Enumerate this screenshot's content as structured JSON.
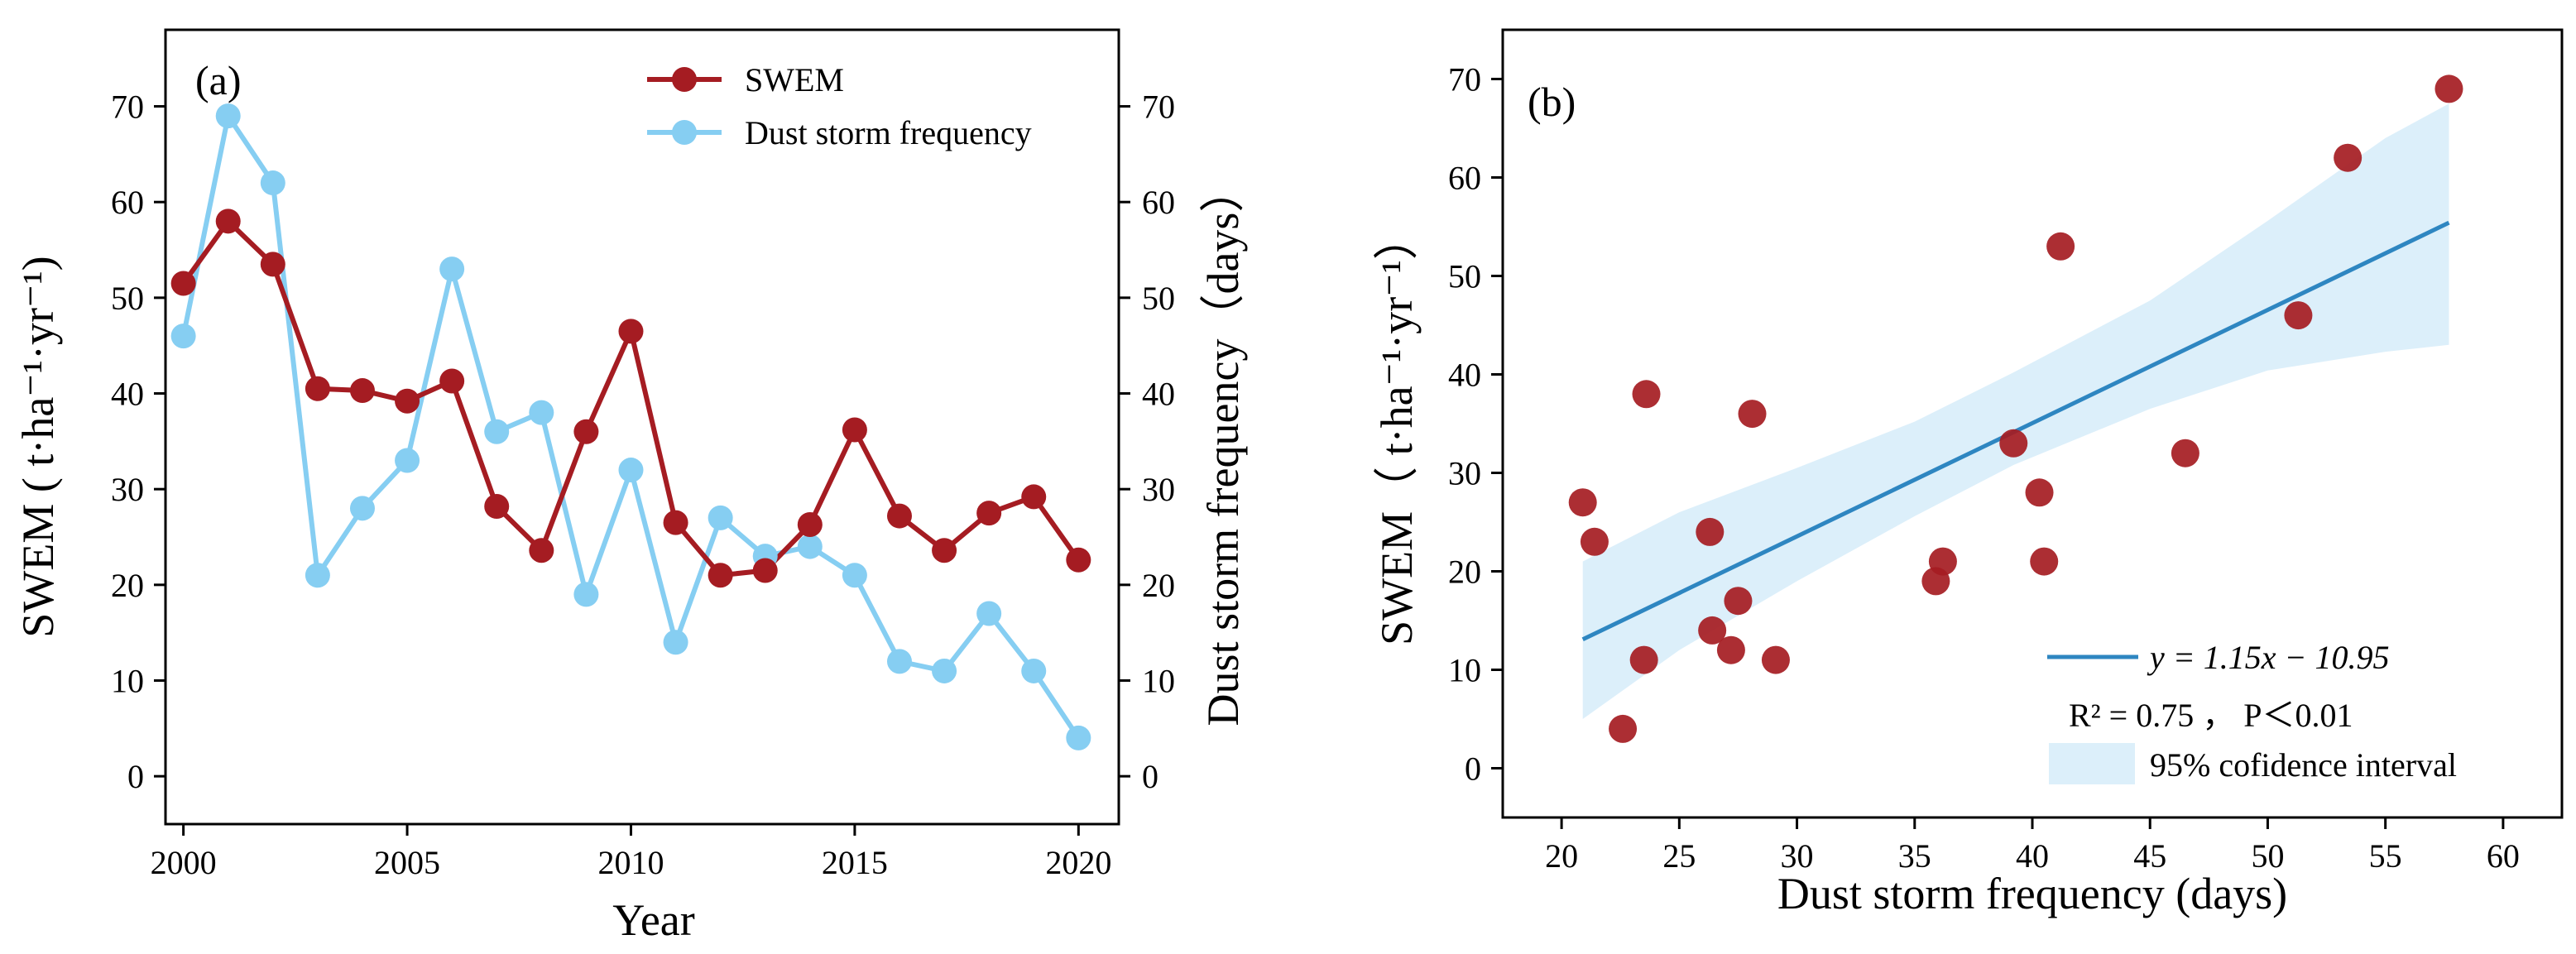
{
  "colors": {
    "swem": "#A51C22",
    "dust": "#86CEF2",
    "fit": "#2E86C1",
    "ci": "#DCEFFA"
  },
  "chart_data": [
    {
      "panel": "(a)",
      "type": "line",
      "x": [
        2000,
        2001,
        2002,
        2003,
        2004,
        2005,
        2006,
        2007,
        2008,
        2009,
        2010,
        2011,
        2012,
        2013,
        2014,
        2015,
        2016,
        2017,
        2018,
        2019,
        2020
      ],
      "series": [
        {
          "name": "SWEM",
          "axis": "left",
          "values": [
            51.5,
            58,
            53.5,
            40.5,
            40.3,
            39.2,
            41.3,
            28.2,
            23.6,
            36,
            46.5,
            26.5,
            21,
            21.5,
            26.3,
            36.2,
            27.2,
            23.6,
            27.5,
            29.2,
            22.6
          ]
        },
        {
          "name": "Dust storm frequency",
          "axis": "right",
          "values": [
            46,
            69,
            62,
            21,
            28,
            33,
            53,
            36,
            38,
            19,
            32,
            14,
            27,
            23,
            24,
            21,
            12,
            11,
            17,
            11,
            4
          ]
        }
      ],
      "xlabel": "Year",
      "ylabel_left": "SWEM ( t·ha⁻¹·yr⁻¹)",
      "ylabel_right": "Dust storm frequency（days）",
      "xlim": [
        1999.6,
        2020.9
      ],
      "ylim": [
        -5,
        78
      ],
      "xticks": [
        2000,
        2005,
        2010,
        2015,
        2020
      ],
      "xtick_labels": [
        "2000",
        "2005",
        "2010",
        "2015",
        "2020"
      ],
      "yticks": [
        0,
        10,
        20,
        30,
        40,
        50,
        60,
        70
      ],
      "ytick_labels": [
        "0",
        "10",
        "20",
        "30",
        "40",
        "50",
        "60",
        "70"
      ],
      "legend_position": "top-right"
    },
    {
      "panel": "(b)",
      "type": "scatter",
      "points": [
        {
          "x": 20.9,
          "y": 27
        },
        {
          "x": 21.4,
          "y": 23
        },
        {
          "x": 22.6,
          "y": 4
        },
        {
          "x": 23.5,
          "y": 11
        },
        {
          "x": 23.6,
          "y": 38
        },
        {
          "x": 26.3,
          "y": 24
        },
        {
          "x": 26.4,
          "y": 14
        },
        {
          "x": 27.2,
          "y": 12
        },
        {
          "x": 27.5,
          "y": 17
        },
        {
          "x": 28.1,
          "y": 36
        },
        {
          "x": 29.1,
          "y": 11
        },
        {
          "x": 35.9,
          "y": 19
        },
        {
          "x": 36.2,
          "y": 21
        },
        {
          "x": 39.2,
          "y": 33
        },
        {
          "x": 40.3,
          "y": 28
        },
        {
          "x": 40.5,
          "y": 21
        },
        {
          "x": 41.2,
          "y": 53
        },
        {
          "x": 46.5,
          "y": 32
        },
        {
          "x": 51.3,
          "y": 46
        },
        {
          "x": 53.4,
          "y": 62
        },
        {
          "x": 57.7,
          "y": 69
        }
      ],
      "fit": {
        "slope": 1.15,
        "intercept": -10.95,
        "x_range": [
          20.9,
          57.7
        ]
      },
      "ci": {
        "x": [
          20.9,
          25,
          30,
          35,
          39.2,
          45,
          50,
          55,
          57.7
        ],
        "lower": [
          5,
          12,
          19,
          25.6,
          30.8,
          36.5,
          40.4,
          42.3,
          43
        ],
        "upper": [
          21,
          26,
          30.5,
          35.2,
          40.2,
          47.5,
          55.6,
          64,
          67.5
        ]
      },
      "equation": "y = 1.15x − 10.95",
      "r2_text": "R² = 0.75 ， P＜0.01",
      "ci_label": "95% cofidence interval",
      "xlabel": "Dust storm frequency (days)",
      "ylabel": "SWEM（ t·ha⁻¹·yr⁻¹）",
      "xlim": [
        17.5,
        62.5
      ],
      "ylim": [
        -5,
        75
      ],
      "xticks": [
        20,
        25,
        30,
        35,
        40,
        45,
        50,
        55,
        60
      ],
      "xtick_labels": [
        "20",
        "25",
        "30",
        "35",
        "40",
        "45",
        "50",
        "55",
        "60"
      ],
      "yticks": [
        0,
        10,
        20,
        30,
        40,
        50,
        60,
        70
      ],
      "ytick_labels": [
        "0",
        "10",
        "20",
        "30",
        "40",
        "50",
        "60",
        "70"
      ],
      "legend_position": "bottom-right"
    }
  ]
}
